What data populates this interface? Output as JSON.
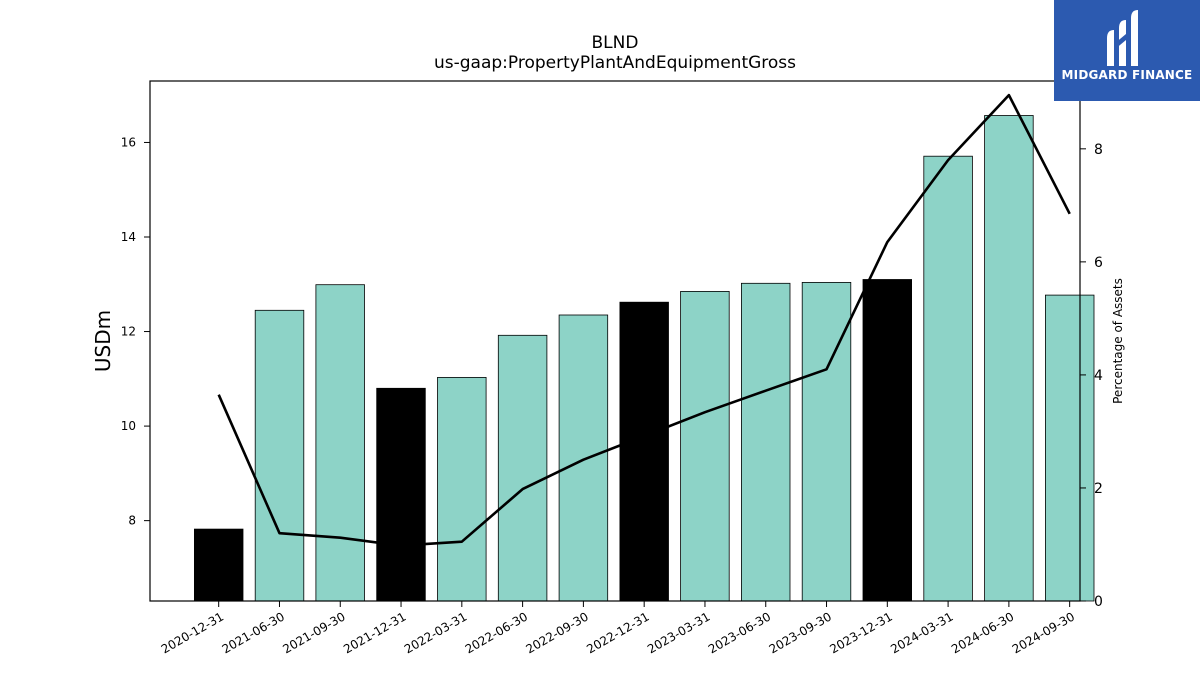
{
  "chart_data": {
    "type": "bar",
    "title": "BLND",
    "subtitle": "us-gaap:PropertyPlantAndEquipmentGross",
    "ylabel": "USDm",
    "y2label": "Percentage of Assets",
    "categories": [
      "2020-12-31",
      "2021-06-30",
      "2021-09-30",
      "2021-12-31",
      "2022-03-31",
      "2022-06-30",
      "2022-09-30",
      "2022-12-31",
      "2023-03-31",
      "2023-06-30",
      "2023-09-30",
      "2023-12-31",
      "2024-03-31",
      "2024-06-30",
      "2024-09-30"
    ],
    "series": [
      {
        "type": "bar",
        "axis": "left",
        "values": [
          7.82,
          12.45,
          12.99,
          10.8,
          11.03,
          11.92,
          12.35,
          12.62,
          12.85,
          13.02,
          13.04,
          13.1,
          15.71,
          16.57,
          12.77
        ],
        "colors": [
          "#000000",
          "#8dd3c7",
          "#8dd3c7",
          "#000000",
          "#8dd3c7",
          "#8dd3c7",
          "#8dd3c7",
          "#000000",
          "#8dd3c7",
          "#8dd3c7",
          "#8dd3c7",
          "#000000",
          "#8dd3c7",
          "#8dd3c7",
          "#8dd3c7"
        ]
      },
      {
        "type": "line",
        "axis": "right",
        "color": "#000000",
        "values": [
          3.65,
          1.2,
          1.12,
          0.98,
          1.05,
          1.98,
          2.5,
          2.92,
          3.34,
          3.72,
          4.1,
          6.35,
          7.8,
          8.95,
          6.85
        ]
      }
    ],
    "ylim": [
      6.3,
      17.3
    ],
    "y2lim": [
      0,
      9.2
    ],
    "yticks": [
      8,
      10,
      12,
      14,
      16
    ],
    "y2ticks": [
      0,
      2,
      4,
      6,
      8
    ]
  },
  "logo": {
    "text": "MIDGARD FINANCE",
    "bg": "#2c5ab0"
  }
}
